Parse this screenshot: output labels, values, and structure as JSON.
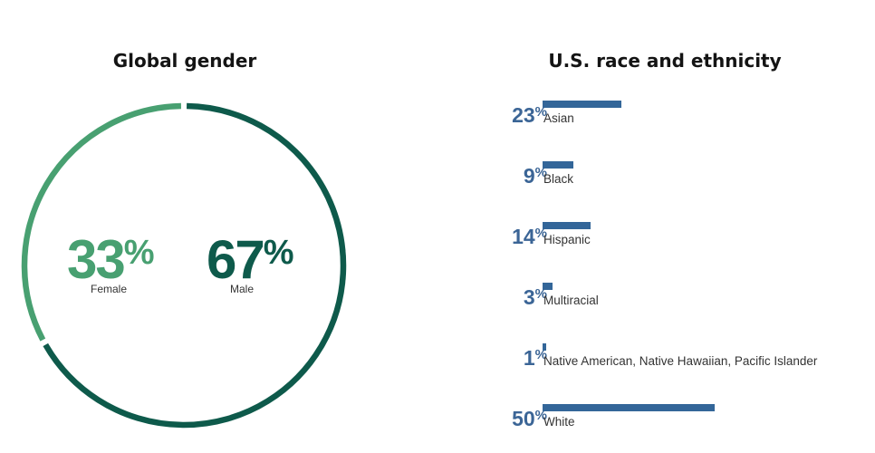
{
  "gender_panel": {
    "title": "Global gender",
    "female": {
      "value": "33",
      "sign": "%",
      "label": "Female"
    },
    "male": {
      "value": "67",
      "sign": "%",
      "label": "Male"
    }
  },
  "race_panel": {
    "title": "U.S. race and ethnicity"
  },
  "colors": {
    "female": "#48a071",
    "male": "#0e5a4b",
    "race_bar": "#336699",
    "race_text": "#3b6596"
  },
  "chart_data": [
    {
      "type": "pie",
      "title": "Global gender",
      "categories": [
        "Female",
        "Male"
      ],
      "values": [
        33,
        67
      ],
      "unit": "%"
    },
    {
      "type": "bar",
      "title": "U.S. race and ethnicity",
      "categories": [
        "Asian",
        "Black",
        "Hispanic",
        "Multiracial",
        "Native American, Native Hawaiian, Pacific Islander",
        "White"
      ],
      "values": [
        23,
        9,
        14,
        3,
        1,
        50
      ],
      "unit": "%",
      "xlim": [
        0,
        50
      ]
    }
  ]
}
